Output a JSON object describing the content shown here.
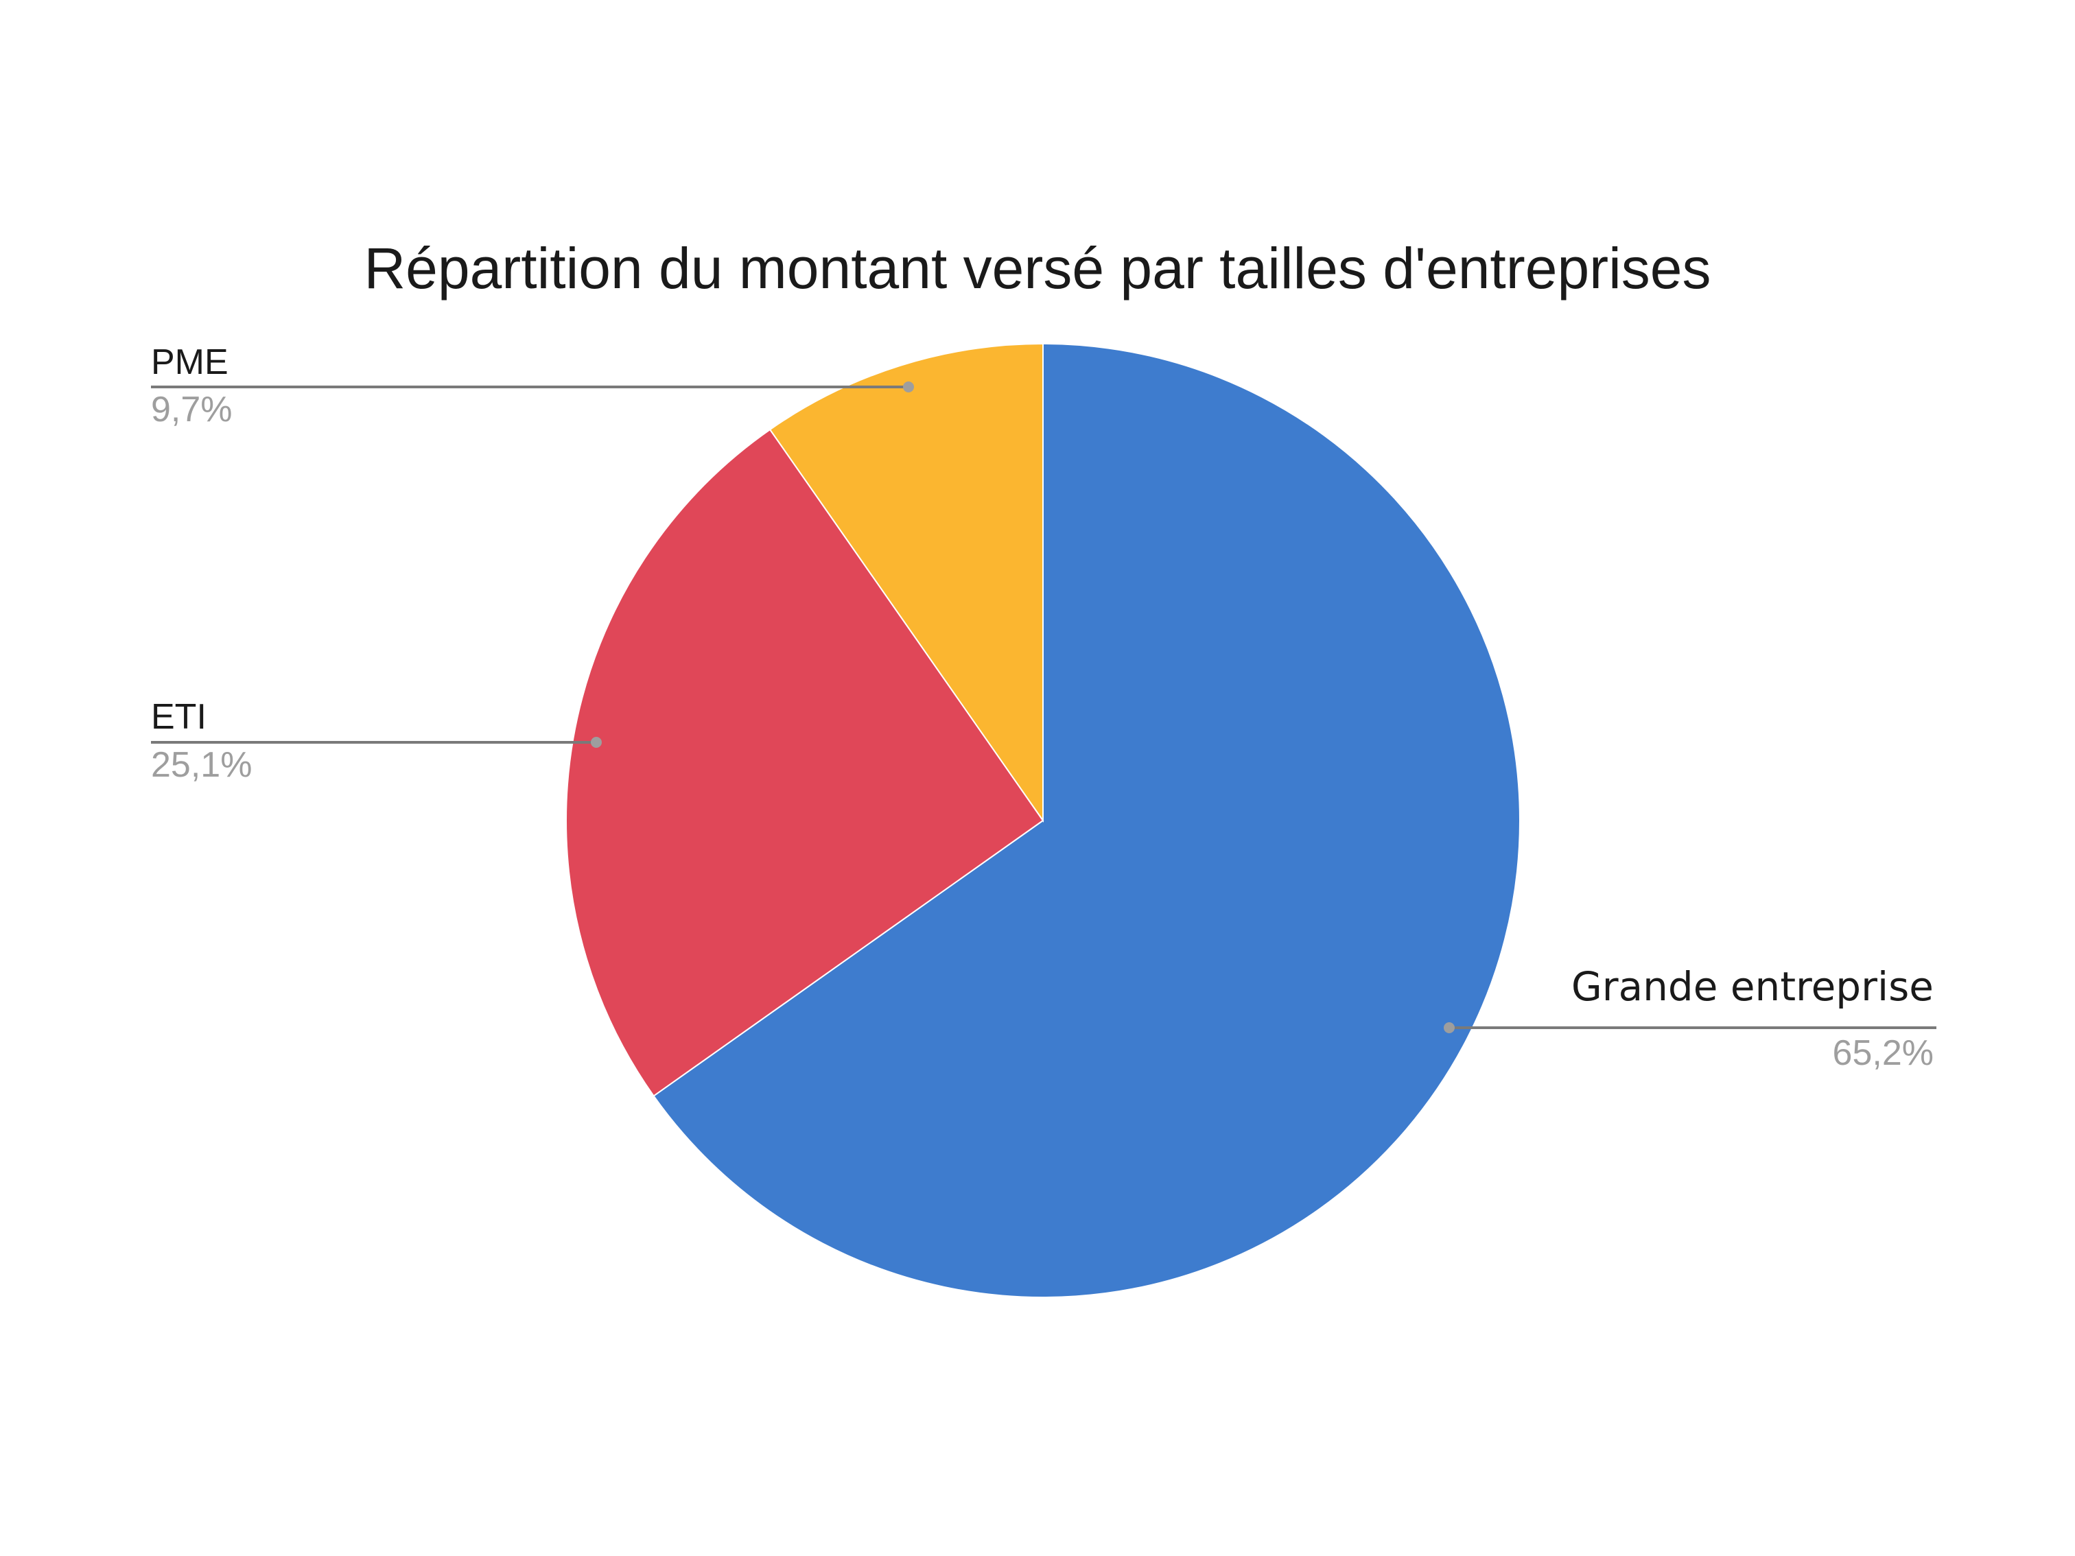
{
  "chart_data": {
    "type": "pie",
    "title": "Répartition du montant versé par tailles d'entreprises",
    "slices": [
      {
        "label": "Grande entreprise",
        "value": 65.2,
        "display": "65,2%",
        "color": "#3e7cce"
      },
      {
        "label": "ETI",
        "value": 25.1,
        "display": "25,1%",
        "color": "#e04758"
      },
      {
        "label": "PME",
        "value": 9.7,
        "display": "9,7%",
        "color": "#fbb630"
      }
    ],
    "start": "12 o'clock",
    "direction": "clockwise",
    "labels": "outside with leader lines",
    "legend": "none"
  }
}
